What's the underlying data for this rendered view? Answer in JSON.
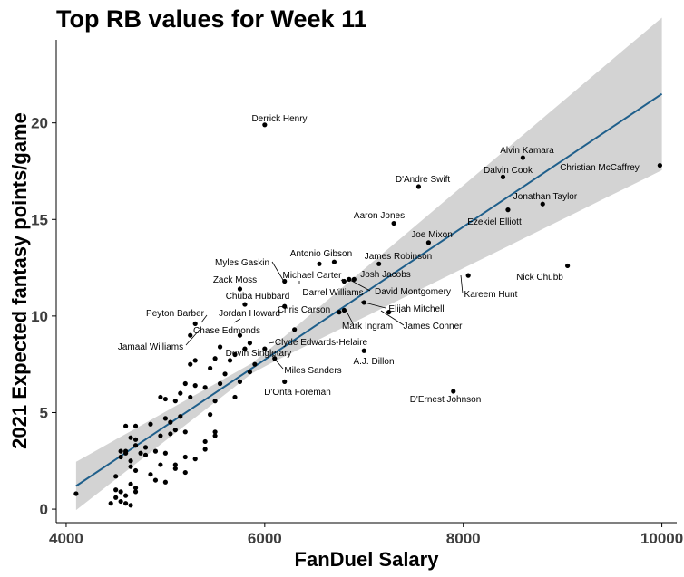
{
  "chart_data": {
    "type": "scatter",
    "title": "Top RB values for Week 11",
    "xlabel": "FanDuel Salary",
    "ylabel": "2021 Expected fantasy points/game",
    "xlim": [
      3900,
      10150
    ],
    "ylim": [
      -0.7,
      24.3
    ],
    "xticks": [
      4000,
      6000,
      8000,
      10000
    ],
    "yticks": [
      0,
      5,
      10,
      15,
      20
    ],
    "grid": false,
    "legend": "none",
    "colors": {
      "points": "#000000",
      "trend": "#1f5f8b",
      "band": "#d3d3d3"
    },
    "trend": {
      "x": [
        4100,
        10000
      ],
      "y": [
        1.2,
        21.5
      ],
      "ci_lower": [
        0.2,
        17.8
      ],
      "ci_upper": [
        2.3,
        23.5
      ]
    },
    "labeled_points": [
      {
        "name": "Derrick Henry",
        "x": 6000,
        "y": 19.9
      },
      {
        "name": "Alvin Kamara",
        "x": 8600,
        "y": 18.2
      },
      {
        "name": "Christian McCaffrey",
        "x": 9980,
        "y": 17.8
      },
      {
        "name": "Dalvin Cook",
        "x": 8400,
        "y": 17.2
      },
      {
        "name": "D'Andre Swift",
        "x": 7550,
        "y": 16.7
      },
      {
        "name": "Jonathan Taylor",
        "x": 8800,
        "y": 15.8
      },
      {
        "name": "Ezekiel Elliott",
        "x": 8450,
        "y": 15.5
      },
      {
        "name": "Aaron Jones",
        "x": 7300,
        "y": 14.8
      },
      {
        "name": "Joe Mixon",
        "x": 7650,
        "y": 13.8
      },
      {
        "name": "Antonio Gibson",
        "x": 6700,
        "y": 12.8
      },
      {
        "name": "James Robinson",
        "x": 7150,
        "y": 12.7
      },
      {
        "name": "Myles Gaskin",
        "x": 6200,
        "y": 11.8
      },
      {
        "name": "Michael Carter",
        "x": 6550,
        "y": 12.7
      },
      {
        "name": "Josh Jacobs",
        "x": 6900,
        "y": 11.9
      },
      {
        "name": "Zack Moss",
        "x": 5750,
        "y": 11.4
      },
      {
        "name": "Nick Chubb",
        "x": 9050,
        "y": 12.6
      },
      {
        "name": "Kareem Hunt",
        "x": 8050,
        "y": 12.1
      },
      {
        "name": "Darrel Williams",
        "x": 6800,
        "y": 11.8
      },
      {
        "name": "David Montgomery",
        "x": 6850,
        "y": 11.9
      },
      {
        "name": "Chuba Hubbard",
        "x": 5800,
        "y": 10.6
      },
      {
        "name": "Elijah Mitchell",
        "x": 7000,
        "y": 10.7
      },
      {
        "name": "Chris Carson",
        "x": 6750,
        "y": 10.2
      },
      {
        "name": "Jordan Howard",
        "x": 6200,
        "y": 10.5
      },
      {
        "name": "Peyton Barber",
        "x": 5300,
        "y": 9.6
      },
      {
        "name": "Mark Ingram",
        "x": 6800,
        "y": 10.3
      },
      {
        "name": "James Conner",
        "x": 7250,
        "y": 10.2
      },
      {
        "name": "Chase Edmonds",
        "x": 5750,
        "y": 9.0
      },
      {
        "name": "Jamaal Williams",
        "x": 5250,
        "y": 9.0
      },
      {
        "name": "Clyde Edwards-Helaire",
        "x": 6300,
        "y": 9.3
      },
      {
        "name": "Devin Singletary",
        "x": 6000,
        "y": 8.3
      },
      {
        "name": "A.J. Dillon",
        "x": 7000,
        "y": 8.2
      },
      {
        "name": "Miles Sanders",
        "x": 6100,
        "y": 7.8
      },
      {
        "name": "D'Onta Foreman",
        "x": 6200,
        "y": 6.6
      },
      {
        "name": "D'Ernest Johnson",
        "x": 7900,
        "y": 6.1
      }
    ],
    "other_points": [
      [
        4100,
        0.8
      ],
      [
        4450,
        0.3
      ],
      [
        4500,
        0.6
      ],
      [
        4500,
        1.0
      ],
      [
        4550,
        0.9
      ],
      [
        4550,
        0.4
      ],
      [
        4600,
        0.7
      ],
      [
        4650,
        0.2
      ],
      [
        4600,
        0.3
      ],
      [
        4650,
        1.3
      ],
      [
        4700,
        0.9
      ],
      [
        4700,
        1.1
      ],
      [
        4500,
        1.7
      ],
      [
        4550,
        2.7
      ],
      [
        4600,
        2.9
      ],
      [
        4600,
        3.0
      ],
      [
        4650,
        2.5
      ],
      [
        4650,
        2.2
      ],
      [
        4700,
        3.6
      ],
      [
        4700,
        2.0
      ],
      [
        4750,
        2.9
      ],
      [
        4800,
        3.2
      ],
      [
        4850,
        1.8
      ],
      [
        4900,
        1.5
      ],
      [
        4950,
        2.3
      ],
      [
        5000,
        1.4
      ],
      [
        5100,
        2.3
      ],
      [
        5100,
        2.1
      ],
      [
        5200,
        1.9
      ],
      [
        5200,
        2.7
      ],
      [
        5300,
        2.6
      ],
      [
        5400,
        3.1
      ],
      [
        5500,
        3.8
      ],
      [
        5500,
        4.0
      ],
      [
        5400,
        3.5
      ],
      [
        5000,
        2.9
      ],
      [
        5050,
        3.9
      ],
      [
        5100,
        4.1
      ],
      [
        5150,
        4.8
      ],
      [
        5200,
        4.0
      ],
      [
        4700,
        3.3
      ],
      [
        4800,
        2.8
      ],
      [
        4900,
        3.0
      ],
      [
        4650,
        3.7
      ],
      [
        4700,
        4.3
      ],
      [
        4850,
        4.4
      ],
      [
        4950,
        3.8
      ],
      [
        5000,
        4.7
      ],
      [
        5050,
        4.5
      ],
      [
        4950,
        5.8
      ],
      [
        5000,
        5.7
      ],
      [
        5100,
        5.6
      ],
      [
        5150,
        6.0
      ],
      [
        5250,
        5.8
      ],
      [
        5300,
        6.4
      ],
      [
        5400,
        6.3
      ],
      [
        5450,
        4.9
      ],
      [
        5500,
        5.6
      ],
      [
        5550,
        6.5
      ],
      [
        5600,
        7.0
      ],
      [
        5700,
        5.8
      ],
      [
        5750,
        6.6
      ],
      [
        5850,
        7.1
      ],
      [
        5200,
        6.5
      ],
      [
        5250,
        7.5
      ],
      [
        5300,
        7.7
      ],
      [
        5450,
        7.3
      ],
      [
        5500,
        7.8
      ],
      [
        5650,
        7.7
      ],
      [
        5700,
        8.0
      ],
      [
        5800,
        8.3
      ],
      [
        5850,
        8.6
      ],
      [
        5550,
        8.4
      ],
      [
        5900,
        7.5
      ],
      [
        4600,
        4.3
      ],
      [
        4550,
        3.0
      ]
    ]
  }
}
